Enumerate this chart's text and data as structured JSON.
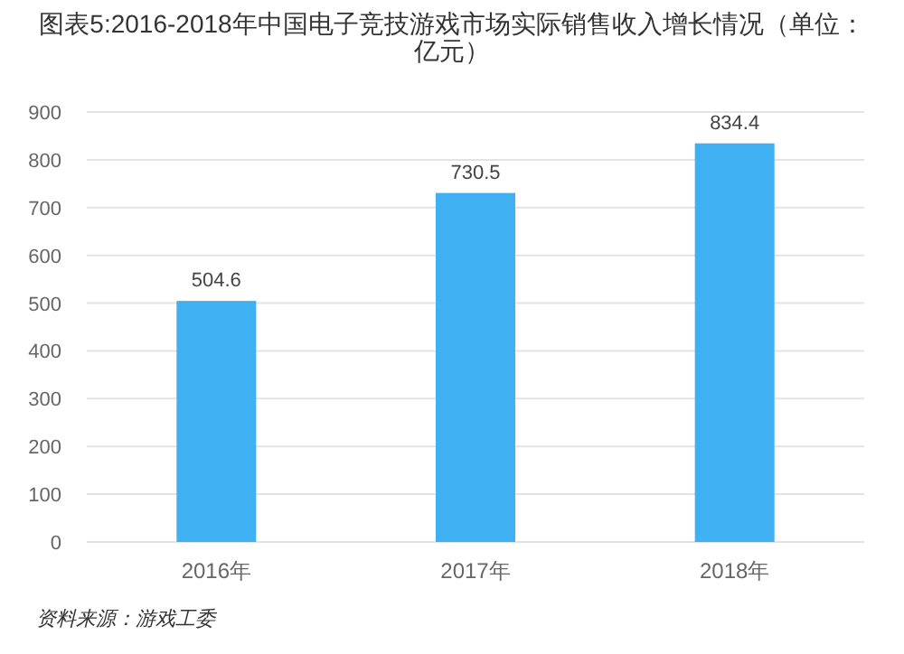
{
  "chart_data": {
    "type": "bar",
    "title": "图表5:2016-2018年中国电子竞技游戏市场实际销售收入增长情况（单位：亿元）",
    "categories": [
      "2016年",
      "2017年",
      "2018年"
    ],
    "values": [
      504.6,
      730.5,
      834.4
    ],
    "color": "#3fb0f2",
    "ylim": [
      0,
      900
    ],
    "yticks": [
      0,
      100,
      200,
      300,
      400,
      500,
      600,
      700,
      800,
      900
    ],
    "grid": "y",
    "data_labels": true,
    "annotations": [
      "资料来源：游戏工委"
    ]
  }
}
